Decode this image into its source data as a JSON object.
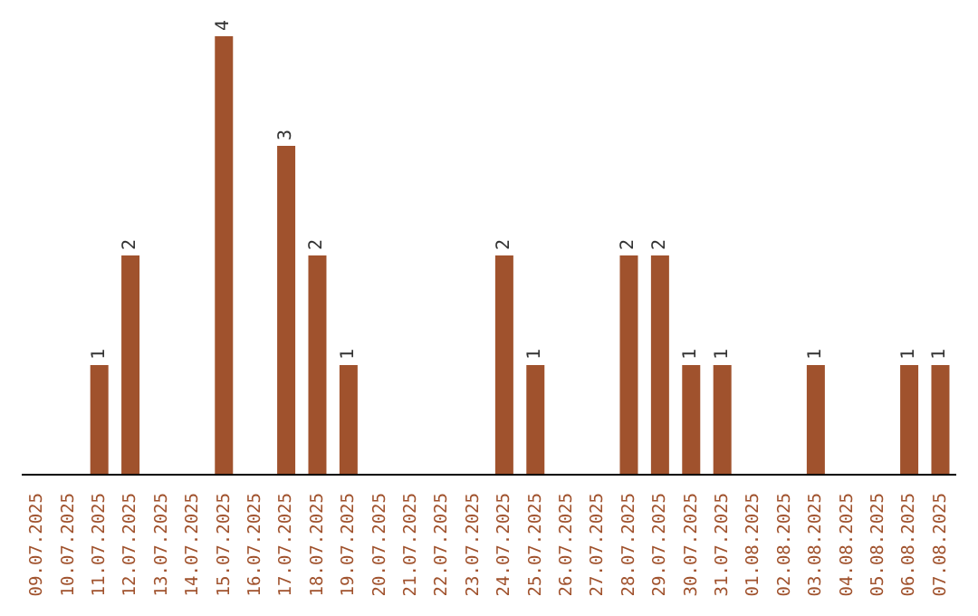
{
  "chart_data": {
    "type": "bar",
    "categories": [
      "09.07.2025",
      "10.07.2025",
      "11.07.2025",
      "12.07.2025",
      "13.07.2025",
      "14.07.2025",
      "15.07.2025",
      "16.07.2025",
      "17.07.2025",
      "18.07.2025",
      "19.07.2025",
      "20.07.2025",
      "21.07.2025",
      "22.07.2025",
      "23.07.2025",
      "24.07.2025",
      "25.07.2025",
      "26.07.2025",
      "27.07.2025",
      "28.07.2025",
      "29.07.2025",
      "30.07.2025",
      "31.07.2025",
      "01.08.2025",
      "02.08.2025",
      "03.08.2025",
      "04.08.2025",
      "05.08.2025",
      "06.08.2025",
      "07.08.2025"
    ],
    "values": [
      0,
      0,
      1,
      2,
      0,
      0,
      4,
      0,
      3,
      2,
      1,
      0,
      0,
      0,
      0,
      2,
      1,
      0,
      0,
      2,
      2,
      1,
      1,
      0,
      0,
      1,
      0,
      0,
      1,
      1
    ],
    "value_labels": [
      null,
      null,
      "1",
      "2",
      null,
      null,
      "4",
      null,
      "3",
      "2",
      "1",
      null,
      null,
      null,
      null,
      "2",
      "1",
      null,
      null,
      "2",
      "2",
      "1",
      "1",
      null,
      null,
      "1",
      null,
      null,
      "1",
      "1"
    ],
    "color": "#a0522d",
    "tick_labels": "x"
  }
}
